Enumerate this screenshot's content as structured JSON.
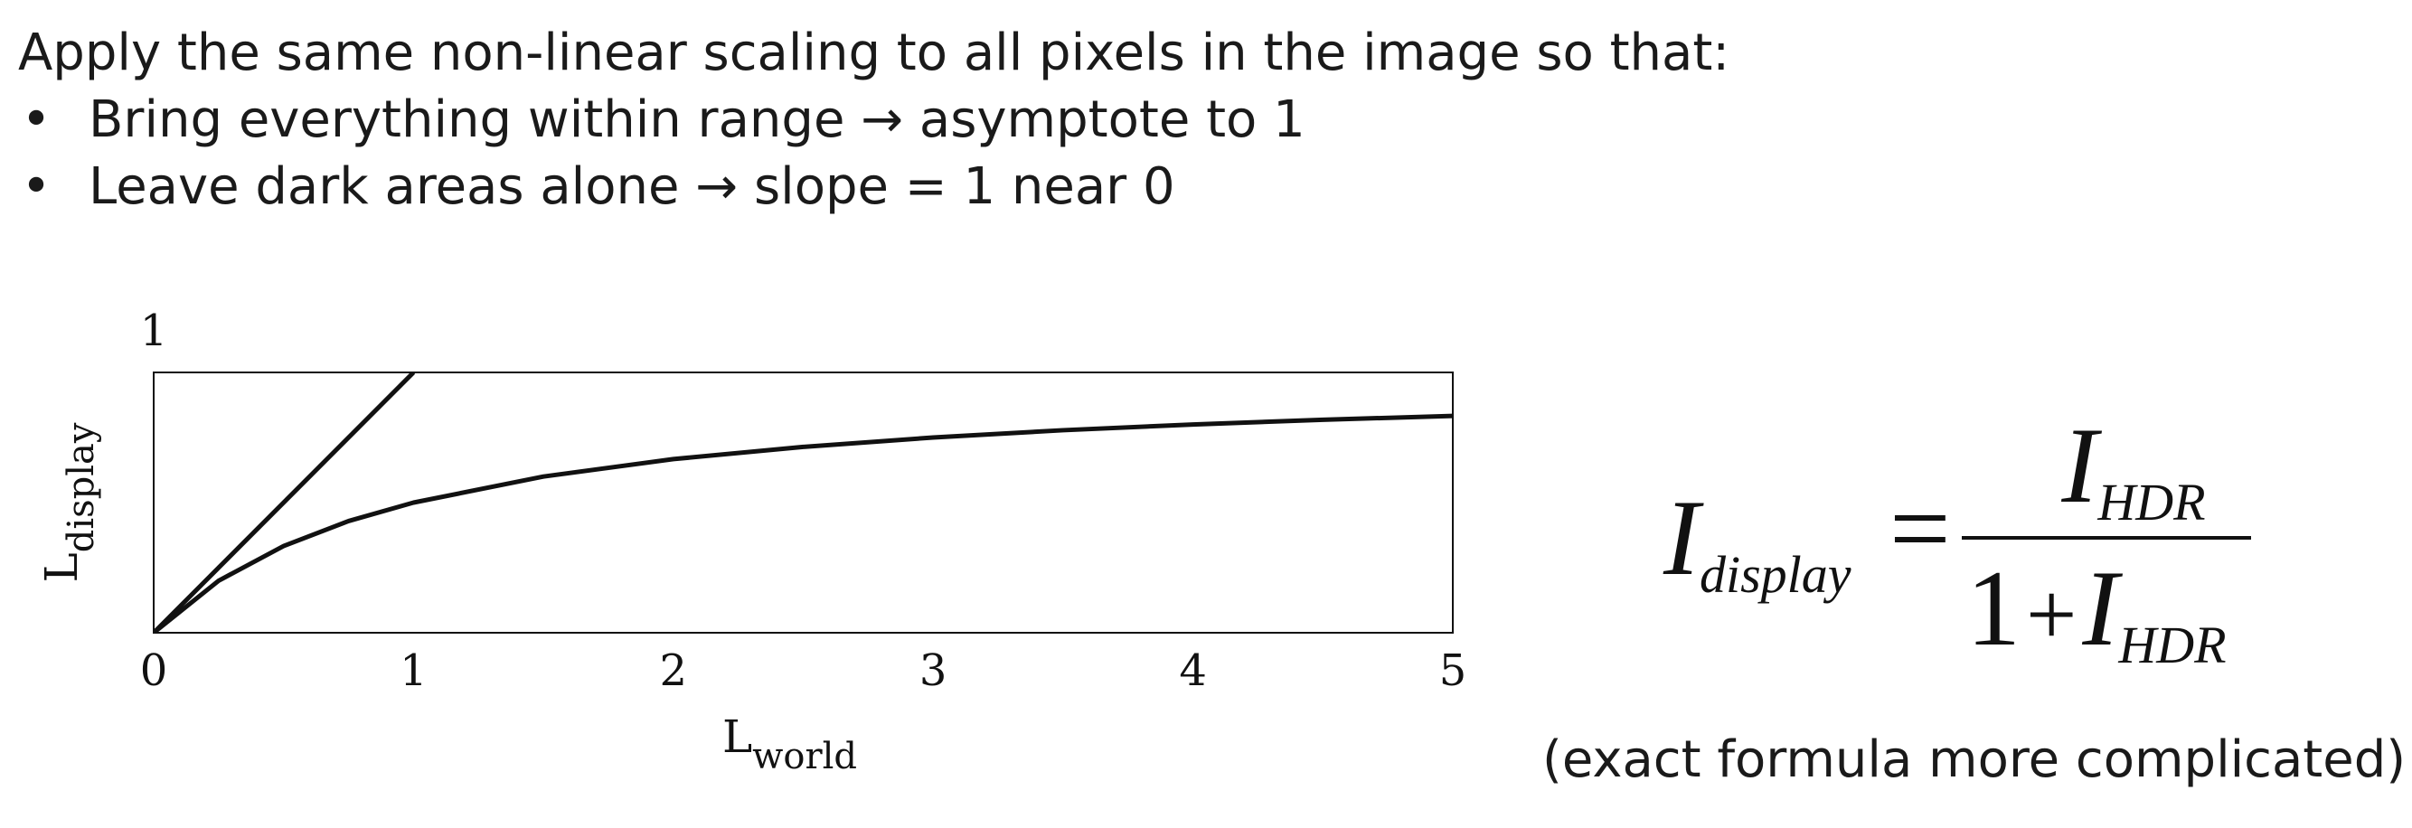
{
  "intro": {
    "heading": "Apply the same non-linear scaling to all pixels in the image so that:",
    "bullets": [
      {
        "marker": "•",
        "text": "Bring everything within range → asymptote to 1"
      },
      {
        "marker": "•",
        "text": "Leave dark areas alone → slope = 1 near 0"
      }
    ]
  },
  "chart_data": {
    "type": "line",
    "xlim": [
      0,
      5
    ],
    "ylim": [
      0,
      1
    ],
    "x_ticks": [
      "0",
      "1",
      "2",
      "3",
      "4",
      "5"
    ],
    "y_ticks": [
      "1"
    ],
    "xlabel": {
      "main": "L",
      "sub": "world"
    },
    "ylabel": {
      "main": "L",
      "sub": "display"
    },
    "grid": false,
    "series": [
      {
        "x": [
          0,
          1
        ],
        "y": [
          0,
          1
        ]
      },
      {
        "x": [
          0,
          0.25,
          0.5,
          0.75,
          1,
          1.5,
          2,
          2.5,
          3,
          3.5,
          4,
          4.5,
          5
        ],
        "y": [
          0,
          0.2,
          0.333,
          0.429,
          0.5,
          0.6,
          0.667,
          0.714,
          0.75,
          0.778,
          0.8,
          0.818,
          0.833
        ]
      }
    ]
  },
  "formula": {
    "lhs_symbol": "I",
    "lhs_sub": "display",
    "equals": "=",
    "num_symbol": "I",
    "num_sub": "HDR",
    "den_one": "1",
    "den_plus": "+",
    "den_symbol": "I",
    "den_sub": "HDR"
  },
  "note": "(exact formula more complicated)",
  "colors": {
    "ink": "#111111",
    "text": "#1a1a1a",
    "background": "#ffffff"
  }
}
